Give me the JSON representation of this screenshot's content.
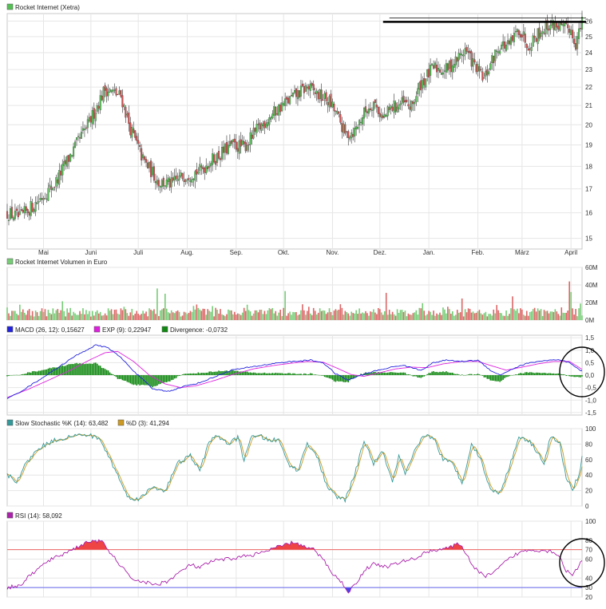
{
  "chart_data": [
    {
      "type": "candlestick",
      "title": "Rocket Internet (Xetra)",
      "x_tick_labels": [
        "Mai",
        "Juni",
        "Juli",
        "Aug.",
        "Sep.",
        "Okt.",
        "Nov.",
        "Dez.",
        "Jan.",
        "Feb.",
        "März",
        "April"
      ],
      "y_tick_labels": [
        "15",
        "16",
        "17",
        "18",
        "19",
        "20",
        "21",
        "22",
        "23",
        "24",
        "25",
        "26"
      ],
      "y_scale": "log",
      "ylim": [
        14.6,
        26.5
      ],
      "colors": {
        "up": "#55c055",
        "down": "#d05050"
      },
      "grid": true,
      "anchors": [
        [
          0,
          16.0
        ],
        [
          8,
          15.8
        ],
        [
          18,
          16.4
        ],
        [
          30,
          17.2
        ],
        [
          40,
          18.5
        ],
        [
          52,
          20.1
        ],
        [
          62,
          21.9
        ],
        [
          72,
          21.5
        ],
        [
          78,
          19.8
        ],
        [
          86,
          18.3
        ],
        [
          96,
          17.3
        ],
        [
          104,
          17.2
        ],
        [
          112,
          17.6
        ],
        [
          122,
          17.8
        ],
        [
          128,
          18.2
        ],
        [
          134,
          18.5
        ],
        [
          142,
          19.0
        ],
        [
          150,
          18.9
        ],
        [
          158,
          19.7
        ],
        [
          166,
          20.4
        ],
        [
          174,
          21.0
        ],
        [
          182,
          21.5
        ],
        [
          190,
          22.0
        ],
        [
          198,
          21.5
        ],
        [
          204,
          21.2
        ],
        [
          210,
          20.3
        ],
        [
          214,
          19.5
        ],
        [
          220,
          19.7
        ],
        [
          226,
          20.6
        ],
        [
          232,
          21.2
        ],
        [
          238,
          20.3
        ],
        [
          244,
          20.9
        ],
        [
          250,
          21.1
        ],
        [
          256,
          20.9
        ],
        [
          262,
          22.2
        ],
        [
          270,
          23.1
        ],
        [
          278,
          23.0
        ],
        [
          284,
          23.5
        ],
        [
          290,
          24.2
        ],
        [
          296,
          23.2
        ],
        [
          302,
          22.4
        ],
        [
          306,
          23.3
        ],
        [
          312,
          24.5
        ],
        [
          318,
          24.4
        ],
        [
          324,
          25.5
        ],
        [
          330,
          24.5
        ],
        [
          336,
          25.2
        ],
        [
          342,
          25.7
        ],
        [
          348,
          25.8
        ],
        [
          352,
          25.4
        ],
        [
          356,
          25.6
        ],
        [
          360,
          24.6
        ],
        [
          364,
          25.9
        ]
      ]
    },
    {
      "type": "bar",
      "title": "Rocket Internet Volumen in Euro",
      "y_tick_labels": [
        "0M",
        "20M",
        "40M",
        "60M"
      ],
      "ylim": [
        0,
        60
      ],
      "colors": {
        "up": "#77cc77",
        "down": "#dd6666"
      },
      "typical_values": [
        4,
        14
      ],
      "spikes": [
        [
          95,
          36
        ],
        [
          100,
          30
        ],
        [
          176,
          33
        ],
        [
          240,
          31
        ],
        [
          320,
          27
        ],
        [
          356,
          44
        ],
        [
          357,
          32
        ]
      ]
    },
    {
      "type": "line",
      "title": "MACD",
      "series": [
        {
          "name": "MACD (26, 12): 0,15627",
          "color": "#2222dd"
        },
        {
          "name": "EXP (9): 0,22947",
          "color": "#dd22dd"
        },
        {
          "name": "Divergence: -0,0732",
          "color": "#118811"
        }
      ],
      "y_tick_labels": [
        "-1,5",
        "-1,0",
        "-0,5",
        "0,0",
        "0,5",
        "1,0",
        "1,5"
      ],
      "ylim": [
        -1.6,
        1.6
      ],
      "macd_anchors": [
        [
          0,
          -0.95
        ],
        [
          10,
          -0.6
        ],
        [
          20,
          -0.2
        ],
        [
          32,
          0.3
        ],
        [
          44,
          0.8
        ],
        [
          56,
          1.2
        ],
        [
          64,
          1.1
        ],
        [
          72,
          0.7
        ],
        [
          82,
          0.05
        ],
        [
          92,
          -0.55
        ],
        [
          102,
          -0.65
        ],
        [
          112,
          -0.45
        ],
        [
          122,
          -0.3
        ],
        [
          132,
          -0.05
        ],
        [
          142,
          0.2
        ],
        [
          152,
          0.3
        ],
        [
          162,
          0.4
        ],
        [
          172,
          0.5
        ],
        [
          182,
          0.55
        ],
        [
          192,
          0.6
        ],
        [
          200,
          0.5
        ],
        [
          208,
          0.05
        ],
        [
          216,
          -0.2
        ],
        [
          224,
          0.0
        ],
        [
          232,
          0.15
        ],
        [
          242,
          0.3
        ],
        [
          250,
          0.4
        ],
        [
          256,
          0.3
        ],
        [
          262,
          0.2
        ],
        [
          270,
          0.5
        ],
        [
          278,
          0.6
        ],
        [
          288,
          0.55
        ],
        [
          298,
          0.6
        ],
        [
          306,
          0.2
        ],
        [
          312,
          0.0
        ],
        [
          320,
          0.25
        ],
        [
          328,
          0.45
        ],
        [
          336,
          0.55
        ],
        [
          344,
          0.6
        ],
        [
          350,
          0.6
        ],
        [
          356,
          0.5
        ],
        [
          360,
          0.3
        ],
        [
          364,
          0.16
        ]
      ],
      "exp_anchors": [
        [
          0,
          -0.9
        ],
        [
          14,
          -0.55
        ],
        [
          28,
          -0.15
        ],
        [
          40,
          0.2
        ],
        [
          52,
          0.6
        ],
        [
          62,
          0.9
        ],
        [
          70,
          0.95
        ],
        [
          80,
          0.55
        ],
        [
          90,
          0.0
        ],
        [
          100,
          -0.35
        ],
        [
          110,
          -0.5
        ],
        [
          120,
          -0.42
        ],
        [
          132,
          -0.2
        ],
        [
          144,
          0.05
        ],
        [
          156,
          0.25
        ],
        [
          168,
          0.38
        ],
        [
          180,
          0.48
        ],
        [
          190,
          0.55
        ],
        [
          200,
          0.52
        ],
        [
          210,
          0.25
        ],
        [
          218,
          0.02
        ],
        [
          226,
          -0.05
        ],
        [
          236,
          0.1
        ],
        [
          246,
          0.25
        ],
        [
          256,
          0.32
        ],
        [
          266,
          0.3
        ],
        [
          276,
          0.45
        ],
        [
          288,
          0.55
        ],
        [
          298,
          0.55
        ],
        [
          308,
          0.35
        ],
        [
          316,
          0.2
        ],
        [
          326,
          0.32
        ],
        [
          336,
          0.45
        ],
        [
          346,
          0.55
        ],
        [
          356,
          0.55
        ],
        [
          364,
          0.23
        ]
      ]
    },
    {
      "type": "line",
      "title": "Slow Stochastic",
      "series": [
        {
          "name": "Slow Stochastic %K (14): 63,482",
          "color": "#339999"
        },
        {
          "name": "%D (3): 41,294",
          "color": "#cc9922"
        }
      ],
      "y_tick_labels": [
        "0",
        "20",
        "40",
        "60",
        "80",
        "100"
      ],
      "ylim": [
        0,
        100
      ],
      "anchors": [
        [
          0,
          40
        ],
        [
          6,
          32
        ],
        [
          12,
          55
        ],
        [
          20,
          75
        ],
        [
          30,
          85
        ],
        [
          40,
          90
        ],
        [
          50,
          92
        ],
        [
          58,
          88
        ],
        [
          64,
          65
        ],
        [
          70,
          40
        ],
        [
          76,
          12
        ],
        [
          84,
          9
        ],
        [
          92,
          25
        ],
        [
          100,
          20
        ],
        [
          108,
          55
        ],
        [
          116,
          65
        ],
        [
          122,
          45
        ],
        [
          128,
          85
        ],
        [
          134,
          90
        ],
        [
          140,
          80
        ],
        [
          146,
          88
        ],
        [
          150,
          60
        ],
        [
          154,
          88
        ],
        [
          160,
          90
        ],
        [
          166,
          85
        ],
        [
          172,
          85
        ],
        [
          178,
          55
        ],
        [
          184,
          45
        ],
        [
          190,
          82
        ],
        [
          196,
          65
        ],
        [
          202,
          28
        ],
        [
          208,
          12
        ],
        [
          214,
          8
        ],
        [
          220,
          40
        ],
        [
          226,
          85
        ],
        [
          232,
          55
        ],
        [
          238,
          70
        ],
        [
          244,
          30
        ],
        [
          248,
          65
        ],
        [
          252,
          40
        ],
        [
          258,
          70
        ],
        [
          264,
          92
        ],
        [
          270,
          88
        ],
        [
          276,
          60
        ],
        [
          282,
          55
        ],
        [
          288,
          30
        ],
        [
          294,
          80
        ],
        [
          300,
          60
        ],
        [
          306,
          20
        ],
        [
          312,
          18
        ],
        [
          318,
          50
        ],
        [
          324,
          90
        ],
        [
          330,
          85
        ],
        [
          336,
          70
        ],
        [
          340,
          55
        ],
        [
          344,
          90
        ],
        [
          350,
          80
        ],
        [
          354,
          35
        ],
        [
          358,
          22
        ],
        [
          362,
          40
        ],
        [
          364,
          63
        ]
      ]
    },
    {
      "type": "area",
      "title": "RSI",
      "series": [
        {
          "name": "RSI (14): 58,092",
          "color": "#aa22aa"
        }
      ],
      "y_tick_labels": [
        "20",
        "30",
        "40",
        "60",
        "70",
        "80",
        "100"
      ],
      "ylim": [
        20,
        100
      ],
      "reference_lines": [
        70,
        30
      ],
      "anchors": [
        [
          0,
          30
        ],
        [
          8,
          32
        ],
        [
          16,
          45
        ],
        [
          26,
          58
        ],
        [
          36,
          66
        ],
        [
          46,
          74
        ],
        [
          54,
          80
        ],
        [
          60,
          78
        ],
        [
          66,
          65
        ],
        [
          72,
          53
        ],
        [
          78,
          40
        ],
        [
          86,
          36
        ],
        [
          94,
          33
        ],
        [
          102,
          37
        ],
        [
          110,
          47
        ],
        [
          116,
          54
        ],
        [
          122,
          51
        ],
        [
          130,
          58
        ],
        [
          140,
          60
        ],
        [
          150,
          63
        ],
        [
          160,
          66
        ],
        [
          170,
          72
        ],
        [
          176,
          75
        ],
        [
          182,
          78
        ],
        [
          188,
          73
        ],
        [
          194,
          70
        ],
        [
          200,
          60
        ],
        [
          206,
          45
        ],
        [
          212,
          35
        ],
        [
          216,
          26
        ],
        [
          220,
          32
        ],
        [
          226,
          48
        ],
        [
          232,
          55
        ],
        [
          240,
          52
        ],
        [
          250,
          57
        ],
        [
          260,
          62
        ],
        [
          266,
          68
        ],
        [
          272,
          70
        ],
        [
          280,
          72
        ],
        [
          286,
          76
        ],
        [
          290,
          68
        ],
        [
          296,
          50
        ],
        [
          302,
          42
        ],
        [
          308,
          45
        ],
        [
          316,
          58
        ],
        [
          324,
          67
        ],
        [
          332,
          70
        ],
        [
          340,
          69
        ],
        [
          346,
          68
        ],
        [
          350,
          62
        ],
        [
          354,
          48
        ],
        [
          358,
          42
        ],
        [
          362,
          53
        ],
        [
          364,
          58
        ]
      ]
    }
  ]
}
